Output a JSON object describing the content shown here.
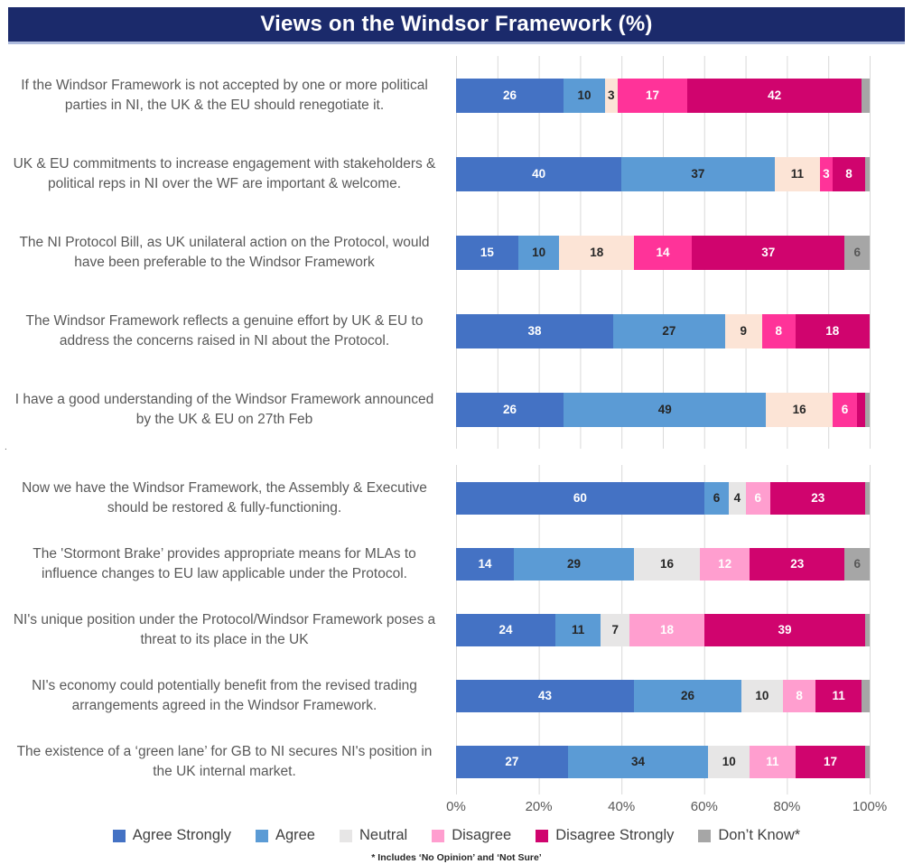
{
  "title": "Views on the Windsor Framework (%)",
  "footnote": "* Includes ‘No Opinion’ and ‘Not Sure’",
  "stray_mark": ".",
  "colors": {
    "title_bg": "#1B2A6B",
    "title_text": "#FFFFFF",
    "gridline": "#D9D9D9",
    "category_text": "#595959",
    "legend_text": "#404040"
  },
  "legend": {
    "items": [
      {
        "label": "Agree Strongly",
        "color": "#4472C4"
      },
      {
        "label": "Agree",
        "color": "#5B9BD5"
      },
      {
        "label": "Neutral",
        "color": "#E7E6E6"
      },
      {
        "label": "Disagree",
        "color": "#FF9ECF"
      },
      {
        "label": "Disagree Strongly",
        "color": "#D0046E"
      },
      {
        "label": "Don’t Know*",
        "color": "#A6A6A6"
      }
    ]
  },
  "chart_data": {
    "type": "bar",
    "orientation": "horizontal",
    "stacked": true,
    "title": "Views on the Windsor Framework (%)",
    "x_axis": {
      "range": [
        0,
        100
      ],
      "ticks": [
        "0%",
        "20%",
        "40%",
        "60%",
        "80%",
        "100%"
      ],
      "tick_positions": [
        0,
        20,
        40,
        60,
        80,
        100
      ]
    },
    "series_names": [
      "Agree Strongly",
      "Agree",
      "Neutral",
      "Disagree",
      "Disagree Strongly",
      "Don't Know*"
    ],
    "value_label_colors": [
      "#FFFFFF",
      "#262626",
      "#262626",
      "#FFFFFF",
      "#FFFFFF",
      "#595959"
    ],
    "value_label_min": 3,
    "groups": [
      {
        "id": "top",
        "grid_interval_pct": 10,
        "palette": [
          "#4472C4",
          "#5B9BD5",
          "#FCE4D6",
          "#FF3399",
          "#D0046E",
          "#A6A6A6"
        ],
        "rows": [
          {
            "label": "If the Windsor Framework is not accepted by one or more political parties in NI, the UK & the EU should renegotiate it.",
            "values": [
              26,
              10,
              3,
              17,
              42,
              2
            ]
          },
          {
            "label": "UK & EU commitments to increase engagement with stakeholders & political reps in NI over the WF are important & welcome.",
            "values": [
              40,
              37,
              11,
              3,
              8,
              1
            ]
          },
          {
            "label": "The NI Protocol Bill, as UK unilateral action on the Protocol, would have been preferable to the Windsor Framework",
            "values": [
              15,
              10,
              18,
              14,
              37,
              6
            ]
          },
          {
            "label": "The Windsor Framework reflects a genuine effort by UK & EU to address the concerns raised in NI about the Protocol.",
            "values": [
              38,
              27,
              9,
              8,
              18,
              0
            ]
          },
          {
            "label": "I have a good understanding of the Windsor Framework announced by the UK & EU on 27th Feb",
            "values": [
              26,
              49,
              16,
              6,
              2,
              1
            ]
          }
        ]
      },
      {
        "id": "bottom",
        "grid_interval_pct": 20,
        "palette": [
          "#4472C4",
          "#5B9BD5",
          "#E7E6E6",
          "#FF9ECF",
          "#D0046E",
          "#A6A6A6"
        ],
        "rows": [
          {
            "label": "Now we have the Windsor Framework, the Assembly & Executive should be restored & fully-functioning.",
            "values": [
              60,
              6,
              4,
              6,
              23,
              1
            ]
          },
          {
            "label": "The 'Stormont Brake’ provides appropriate means for MLAs to influence changes to EU law applicable under the Protocol.",
            "values": [
              14,
              29,
              16,
              12,
              23,
              6
            ]
          },
          {
            "label": "NI's unique position under the Protocol/Windsor Framework poses a threat to its place in the UK",
            "values": [
              24,
              11,
              7,
              18,
              39,
              1
            ]
          },
          {
            "label": "NI's economy could potentially benefit from the revised trading arrangements agreed in the Windsor Framework.",
            "values": [
              43,
              26,
              10,
              8,
              11,
              2
            ]
          },
          {
            "label": "The existence of a ‘green lane’ for GB to NI secures NI's position in the UK internal market.",
            "values": [
              27,
              34,
              10,
              11,
              17,
              1
            ]
          }
        ]
      }
    ]
  }
}
